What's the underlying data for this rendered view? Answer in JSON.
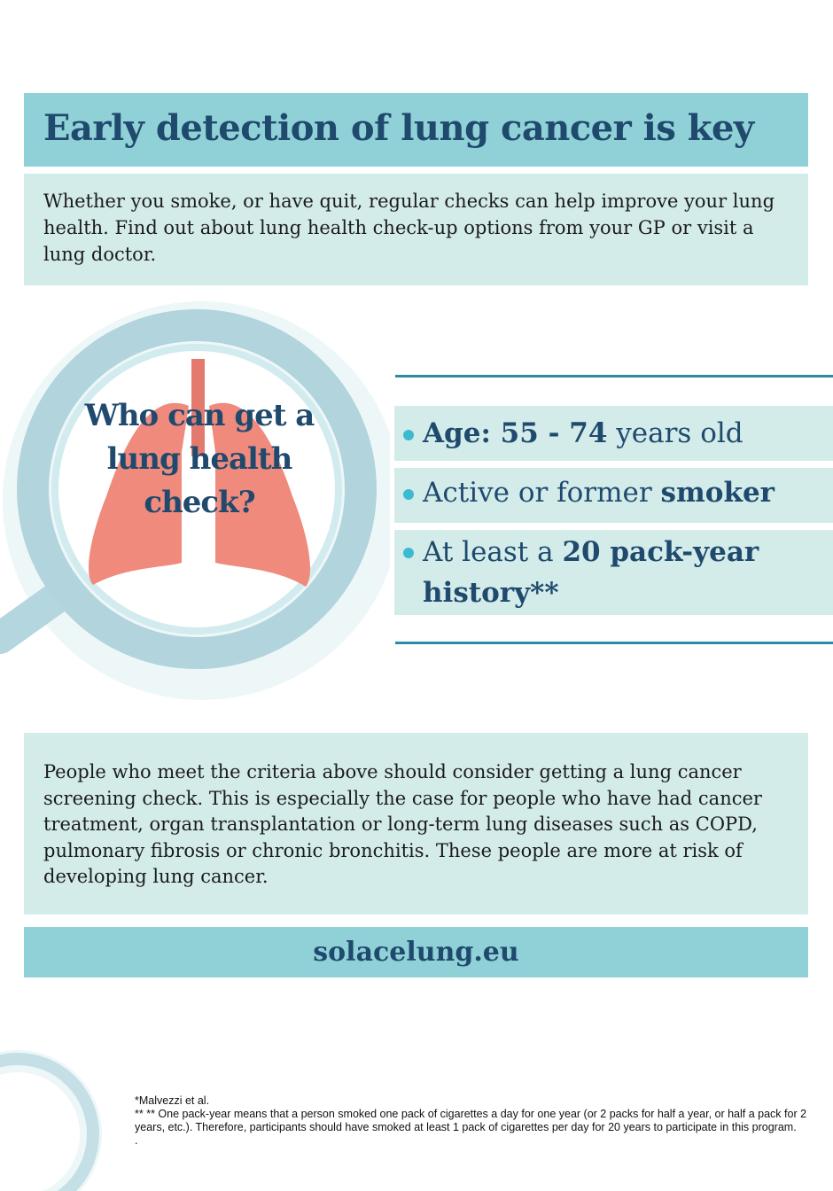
{
  "title": "Early detection of lung cancer is key",
  "intro": "Whether you smoke, or have quit, regular checks can help improve your lung health. Find out about lung health check-up options from your GP or visit a lung doctor.",
  "question": "Who can get a lung health check?",
  "criteria": [
    {
      "bold1": "Age: 55 - 74",
      "normal1": " years old"
    },
    {
      "normal1": "Active or former ",
      "bold1": "smoker"
    },
    {
      "normal1": "At least a ",
      "bold1": "20 pack-year history**"
    }
  ],
  "paragraph": "People who meet the criteria above should consider getting a lung cancer screening check. This is especially the case for people who have had cancer treatment, organ transplantation or long-term lung diseases such as COPD, pulmonary fibrosis or chronic bronchitis. These people are more at risk of developing lung cancer.",
  "url": "solacelung.eu",
  "footnotes": {
    "ref": "*Malvezzi et al.",
    "note": "** ** One pack-year means that a person smoked one pack of cigarettes a day for one year (or 2 packs for half a year, or half a pack for 2 years, etc.). Therefore, participants should have smoked at least 1 pack of cigarettes per day for 20 years to participate in this program.",
    "dot": "."
  },
  "colors": {
    "teal": "#90d1d7",
    "light_teal": "#d3ecea",
    "navy": "#1f4a6e",
    "bullet": "#3bbbd0",
    "lung": "#ef8a7d"
  },
  "icons": [
    "magnifying-glass-icon",
    "lungs-icon"
  ]
}
